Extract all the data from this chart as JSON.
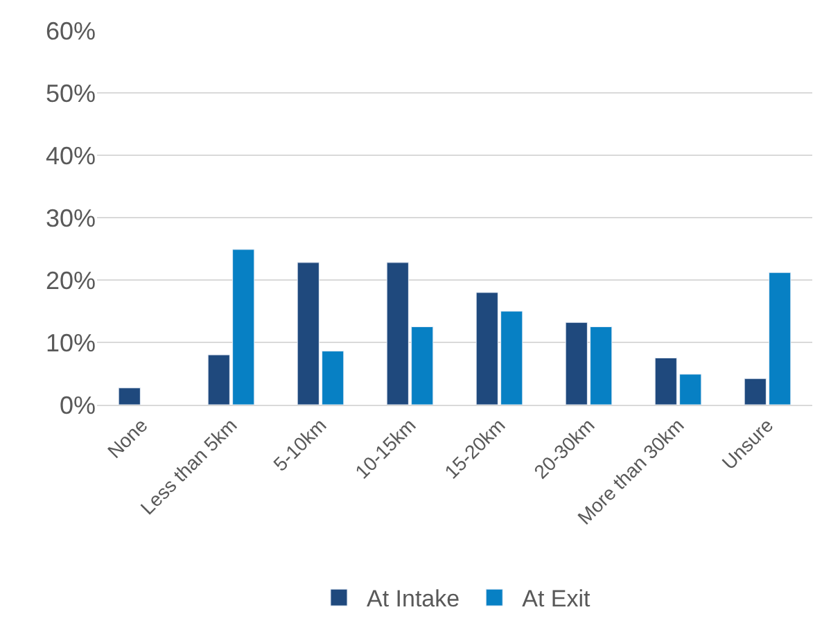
{
  "chart_data": {
    "type": "bar",
    "categories": [
      "None",
      "Less than 5km",
      "5-10km",
      "10-15km",
      "15-20km",
      "20-30km",
      "More than 30km",
      "Unsure"
    ],
    "series": [
      {
        "name": "At Intake",
        "color": "#1f497d",
        "values": [
          2.7,
          8.0,
          22.8,
          22.8,
          18.0,
          13.2,
          7.5,
          4.2
        ]
      },
      {
        "name": "At Exit",
        "color": "#0780c4",
        "values": [
          null,
          24.9,
          8.6,
          12.5,
          15.0,
          12.5,
          4.9,
          21.2
        ]
      }
    ],
    "ylim": [
      0,
      60
    ],
    "yticks": [
      {
        "value": 0,
        "label": "0%"
      },
      {
        "value": 10,
        "label": "10%"
      },
      {
        "value": 20,
        "label": "20%"
      },
      {
        "value": 30,
        "label": "30%"
      },
      {
        "value": 40,
        "label": "40%"
      },
      {
        "value": 50,
        "label": "50%"
      },
      {
        "value": 60,
        "label": "60%"
      }
    ],
    "grid": "y",
    "legend": "bottom"
  }
}
